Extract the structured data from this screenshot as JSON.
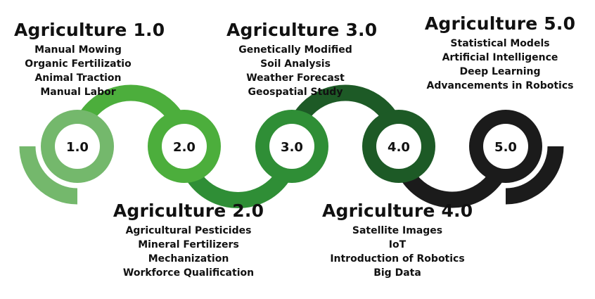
{
  "stages": [
    {
      "label": "1.0",
      "title": "Agriculture 1.0",
      "color": "#74b86c",
      "items": [
        "Manual Mowing",
        "Organic Fertilizatio",
        "Animal Traction",
        "Manual Labor"
      ]
    },
    {
      "label": "2.0",
      "title": "Agriculture 2.0",
      "color": "#4cae3c",
      "items": [
        "Agricultural Pesticides",
        "Mineral Fertilizers",
        "Mechanization",
        "Workforce Qualification"
      ]
    },
    {
      "label": "3.0",
      "title": "Agriculture 3.0",
      "color": "#2f8e36",
      "items": [
        "Genetically Modified",
        "Soil Analysis",
        "Weather Forecast",
        "Geospatial Study"
      ]
    },
    {
      "label": "4.0",
      "title": "Agriculture 4.0",
      "color": "#1d5a26",
      "items": [
        "Satellite Images",
        "IoT",
        "Introduction of Robotics",
        "Big Data"
      ]
    },
    {
      "label": "5.0",
      "title": "Agriculture 5.0",
      "color": "#1b1b1b",
      "items": [
        "Statistical Models",
        "Artificial Intelligence",
        "Deep Learning",
        "Advancements in Robotics"
      ]
    }
  ]
}
